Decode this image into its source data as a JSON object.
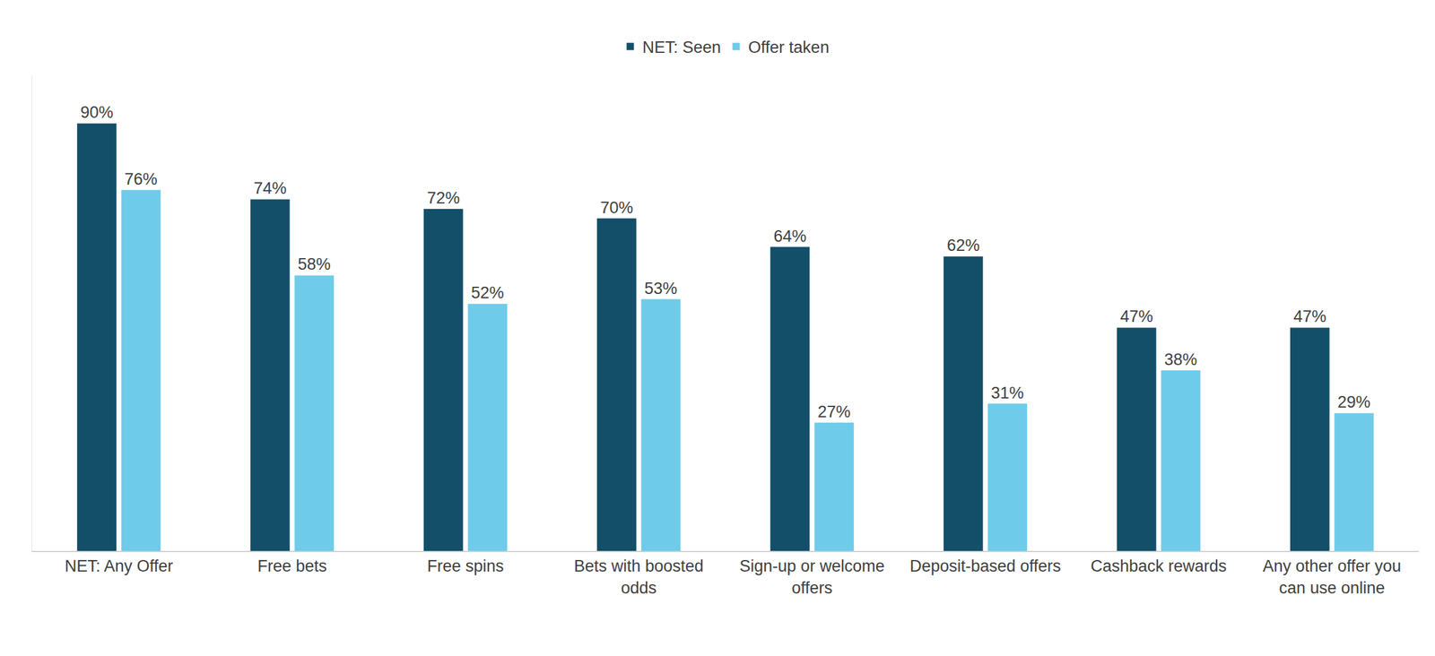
{
  "chart_data": {
    "type": "bar",
    "categories": [
      "NET: Any Offer",
      "Free bets",
      "Free spins",
      "Bets with boosted odds",
      "Sign-up or welcome offers",
      "Deposit-based offers",
      "Cashback rewards",
      "Any other offer you can use online"
    ],
    "series": [
      {
        "name": "NET: Seen",
        "color": "#134f69",
        "values": [
          90,
          74,
          72,
          70,
          64,
          62,
          47,
          47
        ],
        "value_labels": [
          "90%",
          "74%",
          "72%",
          "70%",
          "64%",
          "62%",
          "47%",
          "47%"
        ]
      },
      {
        "name": "Offer taken",
        "color": "#6fcbea",
        "values": [
          76,
          58,
          52,
          53,
          27,
          31,
          38,
          29
        ],
        "value_labels": [
          "76%",
          "58%",
          "52%",
          "53%",
          "27%",
          "31%",
          "38%",
          "29%"
        ]
      }
    ],
    "ylim": [
      0,
      100
    ],
    "grid": false,
    "legend": "top",
    "data_labels": true,
    "tick_labels": "x"
  }
}
